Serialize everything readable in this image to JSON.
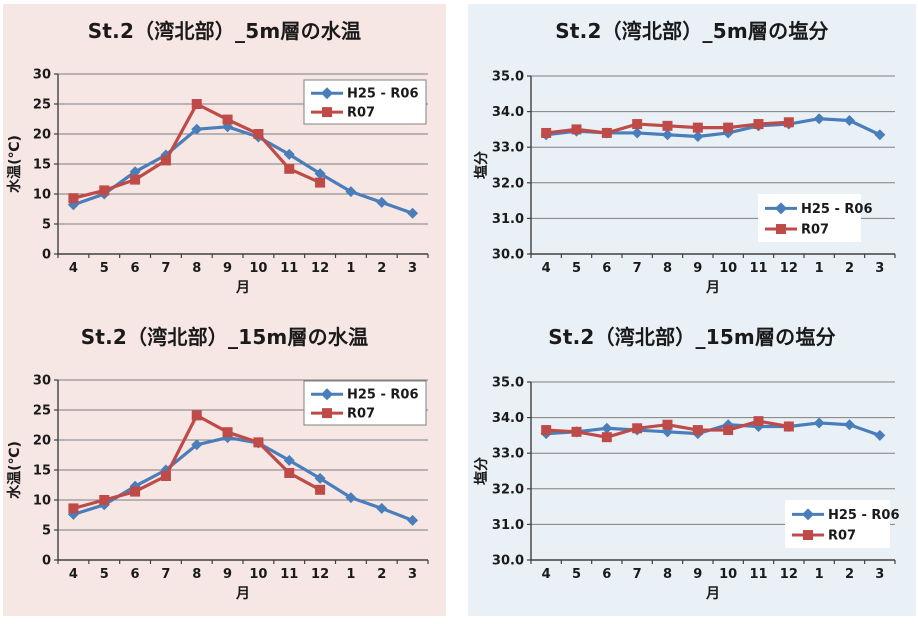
{
  "page": {
    "background": "#ffffff"
  },
  "panels": {
    "left": {
      "name": "water-temperature-panel",
      "background": "#f6e6e4"
    },
    "right": {
      "name": "salinity-panel",
      "background": "#e9f1f7"
    }
  },
  "colors": {
    "series_h25_r06": "#4a7ebb",
    "series_r07": "#be4b48",
    "gridline": "#7f7f7f",
    "axis": "#404040",
    "text": "#1a1a1a",
    "legend_bg": "#ffffff",
    "legend_border": "#808080"
  },
  "chart_data": [
    {
      "type": "line",
      "title": "St.2（湾北部）_5m層の水温",
      "xlabel": "月",
      "ylabel": "水温(℃)",
      "ylim": [
        0,
        30
      ],
      "ytick_step": 5,
      "ytick_labels": [
        "0",
        "5",
        "10",
        "15",
        "20",
        "25",
        "30"
      ],
      "grid": true,
      "legend_position": "top-right",
      "categories": [
        "4",
        "5",
        "6",
        "7",
        "8",
        "9",
        "10",
        "11",
        "12",
        "1",
        "2",
        "3"
      ],
      "series": [
        {
          "name": "H25 - R06",
          "marker": "diamond",
          "color": "#4a7ebb",
          "values": [
            8.2,
            10.0,
            13.7,
            16.5,
            20.8,
            21.2,
            19.5,
            16.6,
            13.4,
            10.4,
            8.6,
            6.8
          ]
        },
        {
          "name": "R07",
          "marker": "square",
          "color": "#be4b48",
          "values": [
            9.3,
            10.6,
            12.4,
            15.6,
            25.0,
            22.4,
            20.0,
            14.2,
            11.9
          ]
        }
      ]
    },
    {
      "type": "line",
      "title": "St.2（湾北部）_15m層の水温",
      "xlabel": "月",
      "ylabel": "水温(℃)",
      "ylim": [
        0,
        30
      ],
      "ytick_step": 5,
      "ytick_labels": [
        "0",
        "5",
        "10",
        "15",
        "20",
        "25",
        "30"
      ],
      "grid": true,
      "legend_position": "top-right",
      "categories": [
        "4",
        "5",
        "6",
        "7",
        "8",
        "9",
        "10",
        "11",
        "12",
        "1",
        "2",
        "3"
      ],
      "series": [
        {
          "name": "H25 - R06",
          "marker": "diamond",
          "color": "#4a7ebb",
          "values": [
            7.6,
            9.2,
            12.3,
            15.0,
            19.2,
            20.4,
            19.5,
            16.6,
            13.6,
            10.4,
            8.6,
            6.6
          ]
        },
        {
          "name": "R07",
          "marker": "square",
          "color": "#be4b48",
          "values": [
            8.6,
            10.0,
            11.4,
            14.0,
            24.1,
            21.3,
            19.6,
            14.5,
            11.7
          ]
        }
      ]
    },
    {
      "type": "line",
      "title": "St.2（湾北部）_5m層の塩分",
      "xlabel": "月",
      "ylabel": "塩分",
      "ylim": [
        30,
        35
      ],
      "ytick_step": 1,
      "ytick_labels": [
        "30.0",
        "31.0",
        "32.0",
        "33.0",
        "34.0",
        "35.0"
      ],
      "grid": true,
      "legend_position": "bottom-right",
      "categories": [
        "4",
        "5",
        "6",
        "7",
        "8",
        "9",
        "10",
        "11",
        "12",
        "1",
        "2",
        "3"
      ],
      "series": [
        {
          "name": "H25 - R06",
          "marker": "diamond",
          "color": "#4a7ebb",
          "values": [
            33.35,
            33.45,
            33.4,
            33.4,
            33.35,
            33.3,
            33.4,
            33.6,
            33.65,
            33.8,
            33.75,
            33.35
          ]
        },
        {
          "name": "R07",
          "marker": "square",
          "color": "#be4b48",
          "values": [
            33.4,
            33.5,
            33.4,
            33.65,
            33.6,
            33.55,
            33.55,
            33.65,
            33.7
          ]
        }
      ]
    },
    {
      "type": "line",
      "title": "St.2（湾北部）_15m層の塩分",
      "xlabel": "月",
      "ylabel": "塩分",
      "ylim": [
        30,
        35
      ],
      "ytick_step": 1,
      "ytick_labels": [
        "30.0",
        "31.0",
        "32.0",
        "33.0",
        "34.0",
        "35.0"
      ],
      "grid": true,
      "legend_position": "bottom-right",
      "categories": [
        "4",
        "5",
        "6",
        "7",
        "8",
        "9",
        "10",
        "11",
        "12",
        "1",
        "2",
        "3"
      ],
      "series": [
        {
          "name": "H25 - R06",
          "marker": "diamond",
          "color": "#4a7ebb",
          "values": [
            33.55,
            33.6,
            33.7,
            33.65,
            33.6,
            33.55,
            33.8,
            33.75,
            33.75,
            33.85,
            33.8,
            33.5
          ]
        },
        {
          "name": "R07",
          "marker": "square",
          "color": "#be4b48",
          "values": [
            33.65,
            33.6,
            33.45,
            33.7,
            33.8,
            33.65,
            33.65,
            33.9,
            33.75
          ]
        }
      ]
    }
  ]
}
